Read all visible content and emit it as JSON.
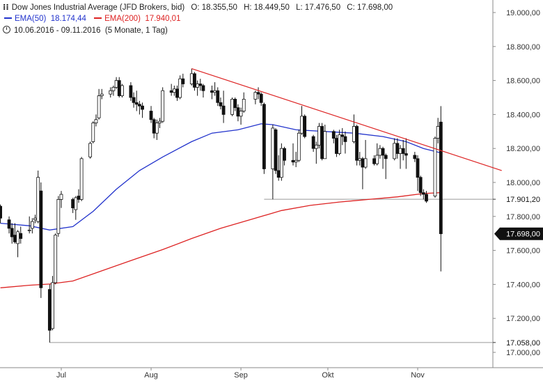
{
  "header": {
    "title": "Dow Jones Industrial Average (JFD Brokers, bid)",
    "ohlc": {
      "o": "O: 18.355,50",
      "h": "H: 18.449,50",
      "l": "L: 17.476,50",
      "c": "C: 17.698,00"
    },
    "legend": [
      {
        "label": "EMA(50)",
        "value": "18.174,44",
        "color": "#2233cc"
      },
      {
        "label": "EMA(200)",
        "value": "17.940,01",
        "color": "#dd2222"
      }
    ],
    "range": "10.06.2016 - 09.11.2016",
    "range_note": "(5 Monate, 1 Tag)",
    "chart_icon": "candlestick-chart-icon",
    "range_icon": "clock-icon"
  },
  "chart_data": {
    "type": "candlestick",
    "ylim": [
      17000,
      19000
    ],
    "y_ticks": [
      {
        "v": 19000,
        "label": "19.000,00"
      },
      {
        "v": 18800,
        "label": "18.800,00"
      },
      {
        "v": 18600,
        "label": "18.600,00"
      },
      {
        "v": 18400,
        "label": "18.400,00"
      },
      {
        "v": 18200,
        "label": "18.200,00"
      },
      {
        "v": 18000,
        "label": "18.000,00"
      },
      {
        "v": 17800,
        "label": "17.800,00"
      },
      {
        "v": 17600,
        "label": "17.600,00"
      },
      {
        "v": 17400,
        "label": "17.400,00"
      },
      {
        "v": 17200,
        "label": "17.200,00"
      },
      {
        "v": 17000,
        "label": "17.000,00"
      }
    ],
    "x_ticks": [
      {
        "date": "2016-07-01",
        "label": "Jul"
      },
      {
        "date": "2016-08-01",
        "label": "Aug"
      },
      {
        "date": "2016-09-01",
        "label": "Sep"
      },
      {
        "date": "2016-10-01",
        "label": "Okt"
      },
      {
        "date": "2016-11-01",
        "label": "Nov"
      }
    ],
    "x_range": [
      "2016-06-10",
      "2016-11-09"
    ],
    "reference_levels": [
      {
        "value": 17901.2,
        "label": "17.901,20",
        "from": "2016-09-09"
      },
      {
        "value": 17058.0,
        "label": "17.058,00",
        "from": "2016-06-27"
      }
    ],
    "last_price": {
      "value": 17698.0,
      "label": "17.698,00"
    },
    "trendline": {
      "start": {
        "date": "2016-08-15",
        "value": 18670
      },
      "end": {
        "date": "2016-11-30",
        "value": 18070
      },
      "color": "#dd2222"
    },
    "series": [
      {
        "name": "EMA(50)",
        "color": "#2233cc",
        "points": [
          [
            "2016-06-10",
            17760
          ],
          [
            "2016-06-20",
            17745
          ],
          [
            "2016-06-27",
            17720
          ],
          [
            "2016-07-05",
            17740
          ],
          [
            "2016-07-12",
            17830
          ],
          [
            "2016-07-20",
            17960
          ],
          [
            "2016-07-28",
            18070
          ],
          [
            "2016-08-05",
            18150
          ],
          [
            "2016-08-15",
            18240
          ],
          [
            "2016-08-22",
            18290
          ],
          [
            "2016-08-31",
            18310
          ],
          [
            "2016-09-08",
            18345
          ],
          [
            "2016-09-12",
            18340
          ],
          [
            "2016-09-20",
            18310
          ],
          [
            "2016-09-30",
            18300
          ],
          [
            "2016-10-10",
            18290
          ],
          [
            "2016-10-20",
            18270
          ],
          [
            "2016-10-28",
            18240
          ],
          [
            "2016-11-03",
            18200
          ],
          [
            "2016-11-09",
            18174
          ]
        ]
      },
      {
        "name": "EMA(200)",
        "color": "#dd2222",
        "points": [
          [
            "2016-06-10",
            17380
          ],
          [
            "2016-06-20",
            17395
          ],
          [
            "2016-06-27",
            17402
          ],
          [
            "2016-07-05",
            17420
          ],
          [
            "2016-07-15",
            17480
          ],
          [
            "2016-07-25",
            17540
          ],
          [
            "2016-08-05",
            17605
          ],
          [
            "2016-08-15",
            17670
          ],
          [
            "2016-08-25",
            17730
          ],
          [
            "2016-09-05",
            17785
          ],
          [
            "2016-09-15",
            17835
          ],
          [
            "2016-09-25",
            17865
          ],
          [
            "2016-10-05",
            17885
          ],
          [
            "2016-10-15",
            17900
          ],
          [
            "2016-10-25",
            17915
          ],
          [
            "2016-11-03",
            17935
          ],
          [
            "2016-11-09",
            17940
          ]
        ]
      }
    ],
    "candles": [
      [
        "2016-06-10",
        17860,
        17870,
        17760,
        17790
      ],
      [
        "2016-06-13",
        17780,
        17800,
        17700,
        17730
      ],
      [
        "2016-06-14",
        17730,
        17760,
        17640,
        17680
      ],
      [
        "2016-06-15",
        17690,
        17760,
        17640,
        17650
      ],
      [
        "2016-06-16",
        17640,
        17720,
        17560,
        17710
      ],
      [
        "2016-06-17",
        17700,
        17740,
        17640,
        17670
      ],
      [
        "2016-06-20",
        17720,
        17800,
        17700,
        17720
      ],
      [
        "2016-06-21",
        17730,
        17790,
        17700,
        17770
      ],
      [
        "2016-06-22",
        17780,
        17810,
        17760,
        17790
      ],
      [
        "2016-06-23",
        17770,
        18070,
        17760,
        18030
      ],
      [
        "2016-06-24",
        17950,
        18000,
        17320,
        17380
      ],
      [
        "2016-06-27",
        17370,
        17400,
        17058,
        17130
      ],
      [
        "2016-06-28",
        17140,
        17450,
        17130,
        17410
      ],
      [
        "2016-06-29",
        17410,
        17700,
        17400,
        17690
      ],
      [
        "2016-06-30",
        17700,
        17920,
        17680,
        17900
      ],
      [
        "2016-07-01",
        17900,
        17950,
        17850,
        17930
      ],
      [
        "2016-07-05",
        17900,
        17910,
        17820,
        17850
      ],
      [
        "2016-07-06",
        17840,
        17920,
        17780,
        17910
      ],
      [
        "2016-07-07",
        17920,
        17960,
        17880,
        17900
      ],
      [
        "2016-07-08",
        17900,
        18150,
        17890,
        18140
      ],
      [
        "2016-07-11",
        18150,
        18240,
        18140,
        18230
      ],
      [
        "2016-07-12",
        18240,
        18360,
        18230,
        18350
      ],
      [
        "2016-07-13",
        18350,
        18400,
        18330,
        18370
      ],
      [
        "2016-07-14",
        18380,
        18550,
        18370,
        18510
      ],
      [
        "2016-07-15",
        18510,
        18550,
        18490,
        18520
      ],
      [
        "2016-07-18",
        18520,
        18560,
        18500,
        18540
      ],
      [
        "2016-07-19",
        18540,
        18570,
        18510,
        18560
      ],
      [
        "2016-07-20",
        18560,
        18620,
        18550,
        18600
      ],
      [
        "2016-07-21",
        18600,
        18620,
        18500,
        18510
      ],
      [
        "2016-07-22",
        18510,
        18580,
        18500,
        18570
      ],
      [
        "2016-07-25",
        18570,
        18590,
        18480,
        18500
      ],
      [
        "2016-07-26",
        18500,
        18530,
        18440,
        18470
      ],
      [
        "2016-07-27",
        18470,
        18540,
        18420,
        18460
      ],
      [
        "2016-07-28",
        18460,
        18480,
        18400,
        18450
      ],
      [
        "2016-07-29",
        18450,
        18470,
        18380,
        18430
      ],
      [
        "2016-08-01",
        18420,
        18450,
        18350,
        18370
      ],
      [
        "2016-08-02",
        18370,
        18380,
        18260,
        18290
      ],
      [
        "2016-08-03",
        18290,
        18370,
        18250,
        18350
      ],
      [
        "2016-08-04",
        18350,
        18380,
        18320,
        18360
      ],
      [
        "2016-08-05",
        18360,
        18560,
        18350,
        18540
      ],
      [
        "2016-08-08",
        18540,
        18580,
        18510,
        18530
      ],
      [
        "2016-08-09",
        18530,
        18570,
        18510,
        18550
      ],
      [
        "2016-08-10",
        18550,
        18570,
        18480,
        18500
      ],
      [
        "2016-08-11",
        18500,
        18630,
        18490,
        18610
      ],
      [
        "2016-08-12",
        18610,
        18640,
        18560,
        18580
      ],
      [
        "2016-08-15",
        18580,
        18670,
        18570,
        18640
      ],
      [
        "2016-08-16",
        18640,
        18650,
        18540,
        18560
      ],
      [
        "2016-08-17",
        18560,
        18600,
        18510,
        18580
      ],
      [
        "2016-08-18",
        18580,
        18610,
        18540,
        18570
      ],
      [
        "2016-08-19",
        18570,
        18580,
        18500,
        18540
      ],
      [
        "2016-08-22",
        18540,
        18570,
        18490,
        18530
      ],
      [
        "2016-08-23",
        18530,
        18590,
        18510,
        18540
      ],
      [
        "2016-08-24",
        18540,
        18560,
        18450,
        18470
      ],
      [
        "2016-08-25",
        18470,
        18500,
        18430,
        18450
      ],
      [
        "2016-08-26",
        18450,
        18540,
        18350,
        18400
      ],
      [
        "2016-08-29",
        18400,
        18500,
        18390,
        18490
      ],
      [
        "2016-08-30",
        18490,
        18500,
        18420,
        18440
      ],
      [
        "2016-08-31",
        18440,
        18460,
        18360,
        18390
      ],
      [
        "2016-09-01",
        18390,
        18440,
        18340,
        18420
      ],
      [
        "2016-09-02",
        18420,
        18530,
        18410,
        18490
      ],
      [
        "2016-09-06",
        18490,
        18540,
        18460,
        18530
      ],
      [
        "2016-09-07",
        18530,
        18560,
        18490,
        18520
      ],
      [
        "2016-09-08",
        18520,
        18530,
        18450,
        18470
      ],
      [
        "2016-09-09",
        18460,
        18470,
        18050,
        18080
      ],
      [
        "2016-09-12",
        18080,
        18340,
        17901,
        18320
      ],
      [
        "2016-09-13",
        18310,
        18320,
        18050,
        18070
      ],
      [
        "2016-09-14",
        18070,
        18160,
        18010,
        18030
      ],
      [
        "2016-09-15",
        18030,
        18230,
        18010,
        18200
      ],
      [
        "2016-09-16",
        18200,
        18210,
        18100,
        18130
      ],
      [
        "2016-09-19",
        18130,
        18230,
        18100,
        18120
      ],
      [
        "2016-09-20",
        18120,
        18180,
        18090,
        18130
      ],
      [
        "2016-09-21",
        18130,
        18310,
        18120,
        18290
      ],
      [
        "2016-09-22",
        18290,
        18450,
        18280,
        18390
      ],
      [
        "2016-09-23",
        18390,
        18400,
        18260,
        18270
      ],
      [
        "2016-09-26",
        18270,
        18280,
        18180,
        18200
      ],
      [
        "2016-09-27",
        18200,
        18240,
        18110,
        18220
      ],
      [
        "2016-09-28",
        18220,
        18350,
        18200,
        18330
      ],
      [
        "2016-09-29",
        18330,
        18350,
        18130,
        18140
      ],
      [
        "2016-09-30",
        18140,
        18340,
        18140,
        18300
      ],
      [
        "2016-10-03",
        18300,
        18310,
        18230,
        18260
      ],
      [
        "2016-10-04",
        18260,
        18280,
        18150,
        18170
      ],
      [
        "2016-10-05",
        18170,
        18310,
        18160,
        18280
      ],
      [
        "2016-10-06",
        18280,
        18320,
        18220,
        18270
      ],
      [
        "2016-10-07",
        18270,
        18300,
        18170,
        18240
      ],
      [
        "2016-10-10",
        18240,
        18400,
        18230,
        18330
      ],
      [
        "2016-10-11",
        18330,
        18340,
        18100,
        18130
      ],
      [
        "2016-10-12",
        18130,
        18180,
        18100,
        18140
      ],
      [
        "2016-10-13",
        18140,
        18150,
        17960,
        18090
      ],
      [
        "2016-10-14",
        18090,
        18250,
        18080,
        18140
      ],
      [
        "2016-10-17",
        18140,
        18160,
        18100,
        18110
      ],
      [
        "2016-10-18",
        18110,
        18230,
        18100,
        18160
      ],
      [
        "2016-10-19",
        18160,
        18220,
        18140,
        18200
      ],
      [
        "2016-10-20",
        18200,
        18210,
        18080,
        18160
      ],
      [
        "2016-10-21",
        18160,
        18170,
        18020,
        18140
      ],
      [
        "2016-10-24",
        18140,
        18260,
        18130,
        18230
      ],
      [
        "2016-10-25",
        18230,
        18260,
        18140,
        18170
      ],
      [
        "2016-10-26",
        18170,
        18220,
        18080,
        18200
      ],
      [
        "2016-10-27",
        18200,
        18250,
        18130,
        18170
      ],
      [
        "2016-10-28",
        18170,
        18260,
        18080,
        18160
      ],
      [
        "2016-10-31",
        18160,
        18180,
        18120,
        18140
      ],
      [
        "2016-11-01",
        18140,
        18160,
        17950,
        18030
      ],
      [
        "2016-11-02",
        18030,
        18040,
        17920,
        17940
      ],
      [
        "2016-11-03",
        17940,
        17960,
        17900,
        17930
      ],
      [
        "2016-11-04",
        17930,
        17950,
        17880,
        17890
      ],
      [
        "2016-11-07",
        17920,
        18270,
        17910,
        18260
      ],
      [
        "2016-11-08",
        18260,
        18380,
        18230,
        18330
      ],
      [
        "2016-11-09",
        18355.5,
        18449.5,
        17476.5,
        17698
      ]
    ]
  }
}
